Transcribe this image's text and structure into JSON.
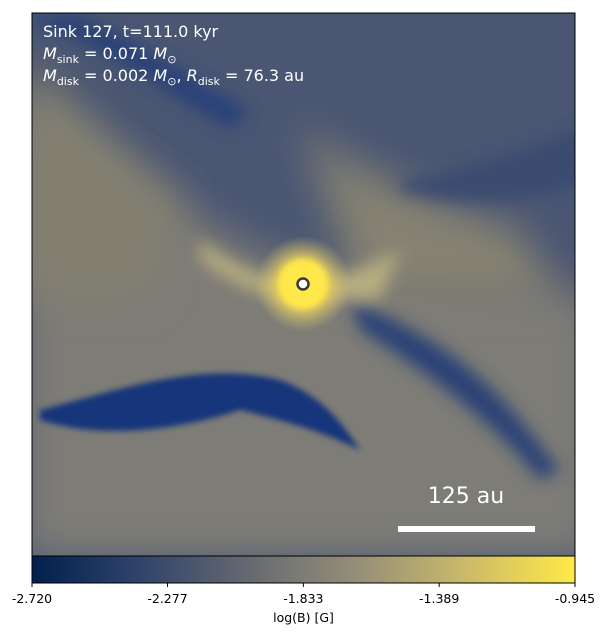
{
  "chart_data": {
    "type": "image",
    "annotations": [
      [
        {
          "text": "Sink 127, t=111.0 kyr"
        }
      ],
      [
        {
          "text": "M",
          "italic": true
        },
        {
          "text": "sink",
          "sub": true
        },
        {
          "text": " = 0.071 "
        },
        {
          "text": "M",
          "italic": true
        },
        {
          "text": "⊙",
          "sub": true
        }
      ],
      [
        {
          "text": "M",
          "italic": true
        },
        {
          "text": "disk",
          "sub": true
        },
        {
          "text": " = 0.002 "
        },
        {
          "text": "M",
          "italic": true
        },
        {
          "text": "⊙",
          "sub": true
        },
        {
          "text": ", "
        },
        {
          "text": "R",
          "italic": true
        },
        {
          "text": "disk",
          "sub": true
        },
        {
          "text": " = 76.3 au"
        }
      ]
    ],
    "scale_bar": "125 au",
    "colorbar": {
      "label": "log(B) [G]",
      "lim": [
        -2.72,
        -0.945
      ],
      "ticks": [
        {
          "value": -2.72,
          "label": "-2.720"
        },
        {
          "value": -2.277,
          "label": "-2.277"
        },
        {
          "value": -1.833,
          "label": "-1.833"
        },
        {
          "value": -1.389,
          "label": "-1.389"
        },
        {
          "value": -0.945,
          "label": "-0.945"
        }
      ],
      "colormap": [
        "#00204d",
        "#31446b",
        "#666970",
        "#958f78",
        "#cbba69",
        "#ffea46"
      ]
    }
  }
}
